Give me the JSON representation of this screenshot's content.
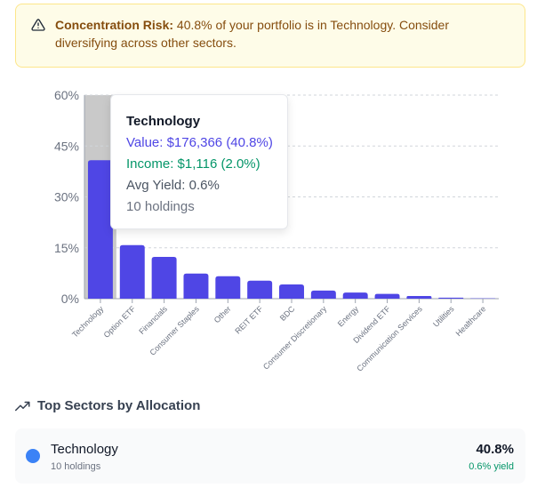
{
  "alert": {
    "title": "Concentration Risk:",
    "message": " 40.8% of your portfolio is in Technology. Consider diversifying across other sectors."
  },
  "chart_data": {
    "type": "bar",
    "categories": [
      "Technology",
      "Option ETF",
      "Financials",
      "Consumer Staples",
      "Other",
      "REIT ETF",
      "BDC",
      "Consumer Discretionary",
      "Energy",
      "Dividend ETF",
      "Communication Services",
      "Utilities",
      "Healthcare"
    ],
    "values": [
      40.8,
      15.8,
      12.3,
      7.4,
      6.6,
      5.3,
      4.2,
      2.4,
      1.8,
      1.4,
      0.8,
      0.3,
      0.1
    ],
    "y_ticks": [
      "0%",
      "15%",
      "30%",
      "45%",
      "60%"
    ],
    "y_tick_values": [
      0,
      15,
      30,
      45,
      60
    ],
    "ylim": [
      0,
      60
    ],
    "grid": true,
    "highlighted_category": "Technology",
    "bar_color": "#4f46e5",
    "highlight_color": "#c9c9c9"
  },
  "tooltip": {
    "title": "Technology",
    "value": "Value: $176,366 (40.8%)",
    "income": "Income: $1,116 (2.0%)",
    "avg_yield": "Avg Yield: 0.6%",
    "holdings": "10 holdings"
  },
  "section": {
    "title": "Top Sectors by Allocation",
    "icon": "trending-up-icon"
  },
  "top_sector": {
    "name": "Technology",
    "holdings": "10 holdings",
    "percent": "40.8%",
    "yield": "0.6% yield",
    "color": "#3b82f6"
  }
}
